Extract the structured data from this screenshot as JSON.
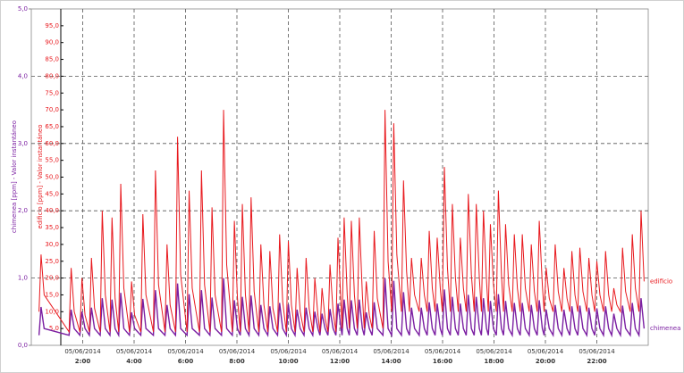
{
  "chart_data": {
    "type": "line",
    "ylabel": "chimenea [ppm] - Valor instantáneo",
    "y2label": "edificio [ppm] - Valor instantáneo",
    "xlim": [
      0,
      24
    ],
    "xticks": [
      {
        "value": 2,
        "label": "05/06/2014 2:00"
      },
      {
        "value": 4,
        "label": "05/06/2014 4:00"
      },
      {
        "value": 6,
        "label": "05/06/2014 6:00"
      },
      {
        "value": 8,
        "label": "05/06/2014 8:00"
      },
      {
        "value": 10,
        "label": "05/06/2014 10:00"
      },
      {
        "value": 12,
        "label": "05/06/2014 12:00"
      },
      {
        "value": 14,
        "label": "05/06/2014 14:00"
      },
      {
        "value": 16,
        "label": "05/06/2014 16:00"
      },
      {
        "value": 18,
        "label": "05/06/2014 18:00"
      },
      {
        "value": 20,
        "label": "05/06/2014 20:00"
      },
      {
        "value": 22,
        "label": "05/06/2014 22:00"
      }
    ],
    "ylim": [
      0,
      5
    ],
    "yticks": [
      {
        "value": 0,
        "label": "0,0"
      },
      {
        "value": 1,
        "label": "1,0"
      },
      {
        "value": 2,
        "label": "2,0"
      },
      {
        "value": 3,
        "label": "3,0"
      },
      {
        "value": 4,
        "label": "4,0"
      },
      {
        "value": 5,
        "label": "5,0"
      }
    ],
    "y2lim": [
      0,
      100
    ],
    "y2ticks": [
      {
        "value": 5,
        "label": "5,0"
      },
      {
        "value": 10,
        "label": "10,0"
      },
      {
        "value": 15,
        "label": "15,0"
      },
      {
        "value": 20,
        "label": "20,0"
      },
      {
        "value": 25,
        "label": "25,0"
      },
      {
        "value": 30,
        "label": "30,0"
      },
      {
        "value": 35,
        "label": "35,0"
      },
      {
        "value": 40,
        "label": "40,0"
      },
      {
        "value": 45,
        "label": "45,0"
      },
      {
        "value": 50,
        "label": "50,0"
      },
      {
        "value": 55,
        "label": "55,0"
      },
      {
        "value": 60,
        "label": "60,0"
      },
      {
        "value": 65,
        "label": "65,0"
      },
      {
        "value": 70,
        "label": "70,0"
      },
      {
        "value": 75,
        "label": "75,0"
      },
      {
        "value": 80,
        "label": "80,0"
      },
      {
        "value": 85,
        "label": "85,0"
      },
      {
        "value": 90,
        "label": "90,0"
      },
      {
        "value": 95,
        "label": "95,0"
      }
    ],
    "grid": true,
    "x": [
      0.3,
      0.38,
      0.5,
      1.47,
      1.55,
      1.67,
      1.89,
      1.97,
      2.09,
      2.26,
      2.34,
      2.46,
      2.68,
      2.76,
      2.88,
      3.06,
      3.14,
      3.26,
      3.4,
      3.48,
      3.6,
      3.82,
      3.9,
      4.02,
      4.26,
      4.34,
      4.46,
      4.75,
      4.83,
      4.95,
      5.2,
      5.28,
      5.4,
      5.61,
      5.69,
      5.81,
      6.06,
      6.14,
      6.26,
      6.54,
      6.62,
      6.74,
      6.95,
      7.03,
      7.15,
      7.4,
      7.48,
      7.6,
      7.82,
      7.9,
      8.02,
      8.13,
      8.21,
      8.33,
      8.47,
      8.55,
      8.67,
      8.85,
      8.93,
      9.05,
      9.2,
      9.28,
      9.4,
      9.58,
      9.66,
      9.78,
      9.92,
      10.0,
      10.12,
      10.26,
      10.34,
      10.46,
      10.61,
      10.69,
      10.81,
      10.95,
      11.03,
      11.15,
      11.23,
      11.31,
      11.43,
      11.54,
      11.62,
      11.74,
      11.85,
      11.93,
      12.05,
      12.09,
      12.17,
      12.29,
      12.37,
      12.45,
      12.57,
      12.68,
      12.76,
      12.88,
      12.95,
      13.03,
      13.15,
      13.26,
      13.34,
      13.46,
      13.68,
      13.76,
      13.88,
      14.02,
      14.1,
      14.22,
      14.4,
      14.48,
      14.6,
      14.71,
      14.79,
      14.91,
      15.09,
      15.17,
      15.29,
      15.4,
      15.48,
      15.6,
      15.71,
      15.79,
      15.91,
      15.99,
      16.07,
      16.19,
      16.3,
      16.38,
      16.5,
      16.61,
      16.69,
      16.81,
      16.92,
      17.0,
      17.12,
      17.23,
      17.31,
      17.43,
      17.51,
      17.59,
      17.71,
      17.78,
      17.86,
      17.98,
      18.09,
      18.17,
      18.29,
      18.37,
      18.45,
      18.57,
      18.71,
      18.79,
      18.91,
      19.02,
      19.1,
      19.22,
      19.37,
      19.45,
      19.57,
      19.68,
      19.76,
      19.88,
      19.95,
      20.03,
      20.15,
      20.3,
      20.38,
      20.5,
      20.64,
      20.72,
      20.84,
      20.95,
      21.03,
      21.15,
      21.26,
      21.34,
      21.46,
      21.61,
      21.69,
      21.81,
      21.92,
      22.0,
      22.12,
      22.26,
      22.34,
      22.46,
      22.58,
      22.66,
      22.78,
      22.92,
      23.0,
      23.12,
      23.3,
      23.38,
      23.5,
      23.64,
      23.72,
      23.84
    ],
    "series": [
      {
        "name": "edificio",
        "color": "#e8191e",
        "axis": "y2",
        "values": [
          10,
          27,
          15,
          4,
          23,
          10,
          4,
          20,
          9,
          4,
          26,
          11,
          4,
          40,
          15,
          4,
          38,
          14,
          4,
          48,
          17,
          4,
          19,
          9,
          4,
          39,
          15,
          4,
          52,
          18,
          4,
          30,
          12,
          4,
          62,
          21,
          4,
          46,
          17,
          4,
          52,
          18,
          4,
          41,
          15,
          4,
          70,
          24,
          4,
          37,
          14,
          4,
          42,
          15,
          4,
          44,
          16,
          4,
          30,
          12,
          4,
          28,
          11,
          4,
          33,
          13,
          4,
          31,
          12,
          4,
          23,
          10,
          4,
          26,
          11,
          4,
          20,
          9,
          4,
          17,
          8,
          4,
          24,
          10,
          4,
          32,
          12,
          5,
          38,
          15,
          5,
          37,
          15,
          5,
          38,
          15,
          5,
          19,
          9,
          5,
          34,
          14,
          5,
          70,
          25,
          10,
          66,
          27,
          10,
          49,
          22,
          10,
          26,
          15,
          10,
          26,
          15,
          10,
          34,
          17,
          10,
          32,
          17,
          10,
          53,
          23,
          10,
          42,
          20,
          10,
          32,
          17,
          10,
          45,
          21,
          10,
          42,
          20,
          10,
          40,
          19,
          10,
          36,
          18,
          10,
          46,
          21,
          10,
          36,
          18,
          10,
          33,
          17,
          10,
          33,
          17,
          10,
          30,
          16,
          10,
          37,
          18,
          10,
          23,
          14,
          10,
          30,
          16,
          10,
          23,
          14,
          10,
          28,
          15,
          10,
          29,
          16,
          10,
          26,
          15,
          10,
          25,
          15,
          10,
          28,
          15,
          10,
          17,
          12,
          10,
          29,
          16,
          10,
          33,
          17,
          10,
          40,
          19
        ]
      },
      {
        "name": "chimenea",
        "color": "#7b1fa2",
        "axis": "y",
        "values": [
          0.15,
          0.57,
          0.25,
          0.15,
          0.53,
          0.25,
          0.15,
          0.5,
          0.25,
          0.15,
          0.56,
          0.25,
          0.15,
          0.7,
          0.25,
          0.15,
          0.68,
          0.25,
          0.15,
          0.78,
          0.25,
          0.15,
          0.49,
          0.25,
          0.15,
          0.69,
          0.25,
          0.15,
          0.82,
          0.25,
          0.15,
          0.6,
          0.25,
          0.15,
          0.92,
          0.25,
          0.15,
          0.76,
          0.25,
          0.15,
          0.82,
          0.25,
          0.15,
          0.71,
          0.25,
          0.15,
          1.0,
          0.25,
          0.15,
          0.67,
          0.25,
          0.15,
          0.72,
          0.25,
          0.15,
          0.74,
          0.25,
          0.15,
          0.6,
          0.25,
          0.15,
          0.58,
          0.25,
          0.15,
          0.63,
          0.25,
          0.15,
          0.61,
          0.25,
          0.15,
          0.53,
          0.25,
          0.15,
          0.56,
          0.25,
          0.15,
          0.5,
          0.25,
          0.15,
          0.47,
          0.25,
          0.15,
          0.54,
          0.25,
          0.15,
          0.62,
          0.25,
          0.15,
          0.68,
          0.25,
          0.15,
          0.67,
          0.25,
          0.15,
          0.68,
          0.25,
          0.15,
          0.49,
          0.25,
          0.15,
          0.64,
          0.25,
          0.15,
          1.0,
          0.25,
          0.15,
          0.96,
          0.25,
          0.15,
          0.79,
          0.25,
          0.15,
          0.56,
          0.25,
          0.15,
          0.56,
          0.25,
          0.15,
          0.64,
          0.25,
          0.15,
          0.62,
          0.25,
          0.15,
          0.83,
          0.25,
          0.15,
          0.72,
          0.25,
          0.15,
          0.62,
          0.25,
          0.15,
          0.75,
          0.25,
          0.15,
          0.72,
          0.25,
          0.15,
          0.7,
          0.25,
          0.15,
          0.66,
          0.25,
          0.15,
          0.76,
          0.25,
          0.15,
          0.66,
          0.25,
          0.15,
          0.63,
          0.25,
          0.15,
          0.63,
          0.25,
          0.15,
          0.6,
          0.25,
          0.15,
          0.67,
          0.25,
          0.15,
          0.53,
          0.25,
          0.15,
          0.6,
          0.25,
          0.15,
          0.53,
          0.25,
          0.15,
          0.58,
          0.25,
          0.15,
          0.59,
          0.25,
          0.15,
          0.56,
          0.25,
          0.15,
          0.55,
          0.25,
          0.15,
          0.58,
          0.25,
          0.15,
          0.47,
          0.25,
          0.15,
          0.59,
          0.25,
          0.15,
          0.63,
          0.25,
          0.15,
          0.7,
          0.25
        ]
      }
    ]
  }
}
